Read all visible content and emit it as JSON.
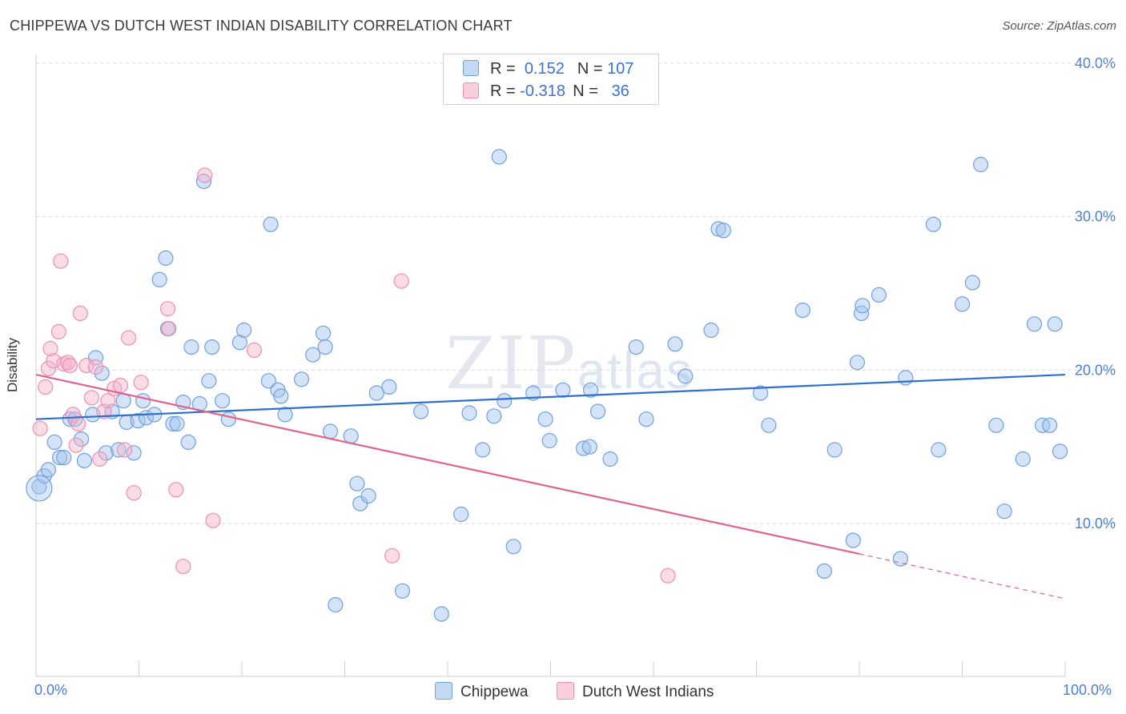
{
  "title": "CHIPPEWA VS DUTCH WEST INDIAN DISABILITY CORRELATION CHART",
  "source": "Source: ZipAtlas.com",
  "watermark": {
    "zip": "ZIP",
    "atlas": "atlas"
  },
  "legend": {
    "r_label": "R =",
    "n_label": "N =",
    "rows": [
      {
        "name": "Chippewa",
        "r": "0.152",
        "n": "107",
        "color": "#6fa0e0"
      },
      {
        "name": "Dutch West Indians",
        "r": "-0.318",
        "n": "36",
        "color": "#ee8fb0"
      }
    ]
  },
  "chart_data": {
    "type": "scatter",
    "title": "CHIPPEWA VS DUTCH WEST INDIAN DISABILITY CORRELATION CHART",
    "xlabel": "",
    "ylabel": "Disability",
    "xlim": [
      0,
      100
    ],
    "ylim": [
      0,
      42
    ],
    "x_tick_labels": [
      "0.0%",
      "100.0%"
    ],
    "y_ticks": [
      10,
      20,
      30,
      40
    ],
    "y_tick_labels": [
      "10.0%",
      "20.0%",
      "30.0%",
      "40.0%"
    ],
    "grid": true,
    "legend_position": "top-center",
    "series": [
      {
        "name": "Chippewa",
        "color": "#6fa0e0",
        "r": 0.152,
        "n": 107,
        "trend": {
          "x": [
            0,
            100
          ],
          "y": [
            16.8,
            19.7
          ],
          "dashed_from": null
        },
        "points": [
          [
            0.3,
            12.4
          ],
          [
            0.8,
            13.1
          ],
          [
            1.2,
            13.5
          ],
          [
            1.8,
            15.3
          ],
          [
            2.3,
            14.3
          ],
          [
            2.7,
            14.3
          ],
          [
            3.3,
            16.8
          ],
          [
            3.8,
            16.8
          ],
          [
            4.4,
            15.5
          ],
          [
            4.7,
            14.1
          ],
          [
            5.5,
            17.1
          ],
          [
            5.8,
            20.8
          ],
          [
            6.4,
            19.8
          ],
          [
            6.8,
            14.6
          ],
          [
            7.4,
            17.3
          ],
          [
            8.0,
            14.8
          ],
          [
            8.5,
            18.0
          ],
          [
            8.8,
            16.6
          ],
          [
            9.5,
            14.6
          ],
          [
            9.9,
            16.7
          ],
          [
            10.4,
            18.0
          ],
          [
            10.7,
            16.9
          ],
          [
            11.5,
            17.1
          ],
          [
            12.0,
            25.9
          ],
          [
            12.6,
            27.3
          ],
          [
            12.8,
            22.7
          ],
          [
            13.3,
            16.5
          ],
          [
            13.7,
            16.5
          ],
          [
            14.3,
            17.9
          ],
          [
            14.8,
            15.3
          ],
          [
            15.1,
            21.5
          ],
          [
            15.9,
            17.8
          ],
          [
            16.3,
            32.3
          ],
          [
            16.8,
            19.3
          ],
          [
            17.1,
            21.5
          ],
          [
            18.1,
            18.0
          ],
          [
            18.7,
            16.8
          ],
          [
            19.8,
            21.8
          ],
          [
            20.2,
            22.6
          ],
          [
            22.6,
            19.3
          ],
          [
            22.8,
            29.5
          ],
          [
            23.5,
            18.7
          ],
          [
            23.8,
            18.3
          ],
          [
            24.2,
            17.1
          ],
          [
            25.8,
            19.4
          ],
          [
            26.9,
            21.0
          ],
          [
            27.9,
            22.4
          ],
          [
            28.1,
            21.5
          ],
          [
            28.6,
            16.0
          ],
          [
            29.1,
            4.7
          ],
          [
            30.6,
            15.7
          ],
          [
            31.2,
            12.6
          ],
          [
            31.5,
            11.3
          ],
          [
            32.3,
            11.8
          ],
          [
            33.1,
            18.5
          ],
          [
            34.3,
            18.9
          ],
          [
            35.6,
            5.6
          ],
          [
            37.4,
            17.3
          ],
          [
            39.4,
            4.1
          ],
          [
            41.3,
            10.6
          ],
          [
            42.1,
            17.2
          ],
          [
            43.4,
            14.8
          ],
          [
            44.5,
            17.0
          ],
          [
            45.0,
            33.9
          ],
          [
            45.5,
            18.0
          ],
          [
            46.4,
            8.5
          ],
          [
            48.3,
            18.5
          ],
          [
            49.5,
            16.8
          ],
          [
            49.9,
            15.4
          ],
          [
            51.2,
            18.7
          ],
          [
            53.2,
            14.9
          ],
          [
            53.8,
            15.0
          ],
          [
            53.9,
            18.7
          ],
          [
            54.6,
            17.3
          ],
          [
            55.8,
            14.2
          ],
          [
            58.3,
            21.5
          ],
          [
            59.3,
            16.8
          ],
          [
            62.1,
            21.7
          ],
          [
            63.1,
            19.6
          ],
          [
            65.6,
            22.6
          ],
          [
            66.3,
            29.2
          ],
          [
            66.8,
            29.1
          ],
          [
            70.4,
            18.5
          ],
          [
            71.2,
            16.4
          ],
          [
            74.5,
            23.9
          ],
          [
            76.6,
            6.9
          ],
          [
            77.6,
            14.8
          ],
          [
            79.4,
            8.9
          ],
          [
            79.8,
            20.5
          ],
          [
            80.2,
            23.7
          ],
          [
            80.3,
            24.2
          ],
          [
            81.9,
            24.9
          ],
          [
            84.0,
            7.7
          ],
          [
            84.5,
            19.5
          ],
          [
            87.2,
            29.5
          ],
          [
            87.7,
            14.8
          ],
          [
            90.0,
            24.3
          ],
          [
            91.0,
            25.7
          ],
          [
            91.8,
            33.4
          ],
          [
            93.3,
            16.4
          ],
          [
            94.1,
            10.8
          ],
          [
            95.9,
            14.2
          ],
          [
            97.0,
            23.0
          ],
          [
            97.8,
            16.4
          ],
          [
            98.5,
            16.4
          ],
          [
            99.0,
            23.0
          ],
          [
            99.5,
            14.7
          ]
        ]
      },
      {
        "name": "Dutch West Indians",
        "color": "#ee8fb0",
        "r": -0.318,
        "n": 36,
        "trend": {
          "x": [
            0,
            100
          ],
          "y": [
            19.7,
            5.1
          ],
          "dashed_from": 80
        },
        "points": [
          [
            0.4,
            16.2
          ],
          [
            0.9,
            18.9
          ],
          [
            1.2,
            20.1
          ],
          [
            1.4,
            21.4
          ],
          [
            1.7,
            20.6
          ],
          [
            2.2,
            22.5
          ],
          [
            2.4,
            27.1
          ],
          [
            2.7,
            20.4
          ],
          [
            3.1,
            20.5
          ],
          [
            3.3,
            20.3
          ],
          [
            3.6,
            17.1
          ],
          [
            3.9,
            15.1
          ],
          [
            4.1,
            16.5
          ],
          [
            4.3,
            23.7
          ],
          [
            4.9,
            20.3
          ],
          [
            5.4,
            18.2
          ],
          [
            5.8,
            20.2
          ],
          [
            6.2,
            14.2
          ],
          [
            6.6,
            17.3
          ],
          [
            7.0,
            18.0
          ],
          [
            7.6,
            18.8
          ],
          [
            8.2,
            19.0
          ],
          [
            8.6,
            14.8
          ],
          [
            9.0,
            22.1
          ],
          [
            9.5,
            12.0
          ],
          [
            10.2,
            19.2
          ],
          [
            12.8,
            24.0
          ],
          [
            12.9,
            22.7
          ],
          [
            13.6,
            12.2
          ],
          [
            14.3,
            7.2
          ],
          [
            16.4,
            32.7
          ],
          [
            17.2,
            10.2
          ],
          [
            21.2,
            21.3
          ],
          [
            34.6,
            7.9
          ],
          [
            35.5,
            25.8
          ],
          [
            61.4,
            6.6
          ]
        ]
      }
    ]
  },
  "bottom_legend": [
    {
      "label": "Chippewa",
      "color": "#6fa0e0"
    },
    {
      "label": "Dutch West Indians",
      "color": "#ee8fb0"
    }
  ]
}
